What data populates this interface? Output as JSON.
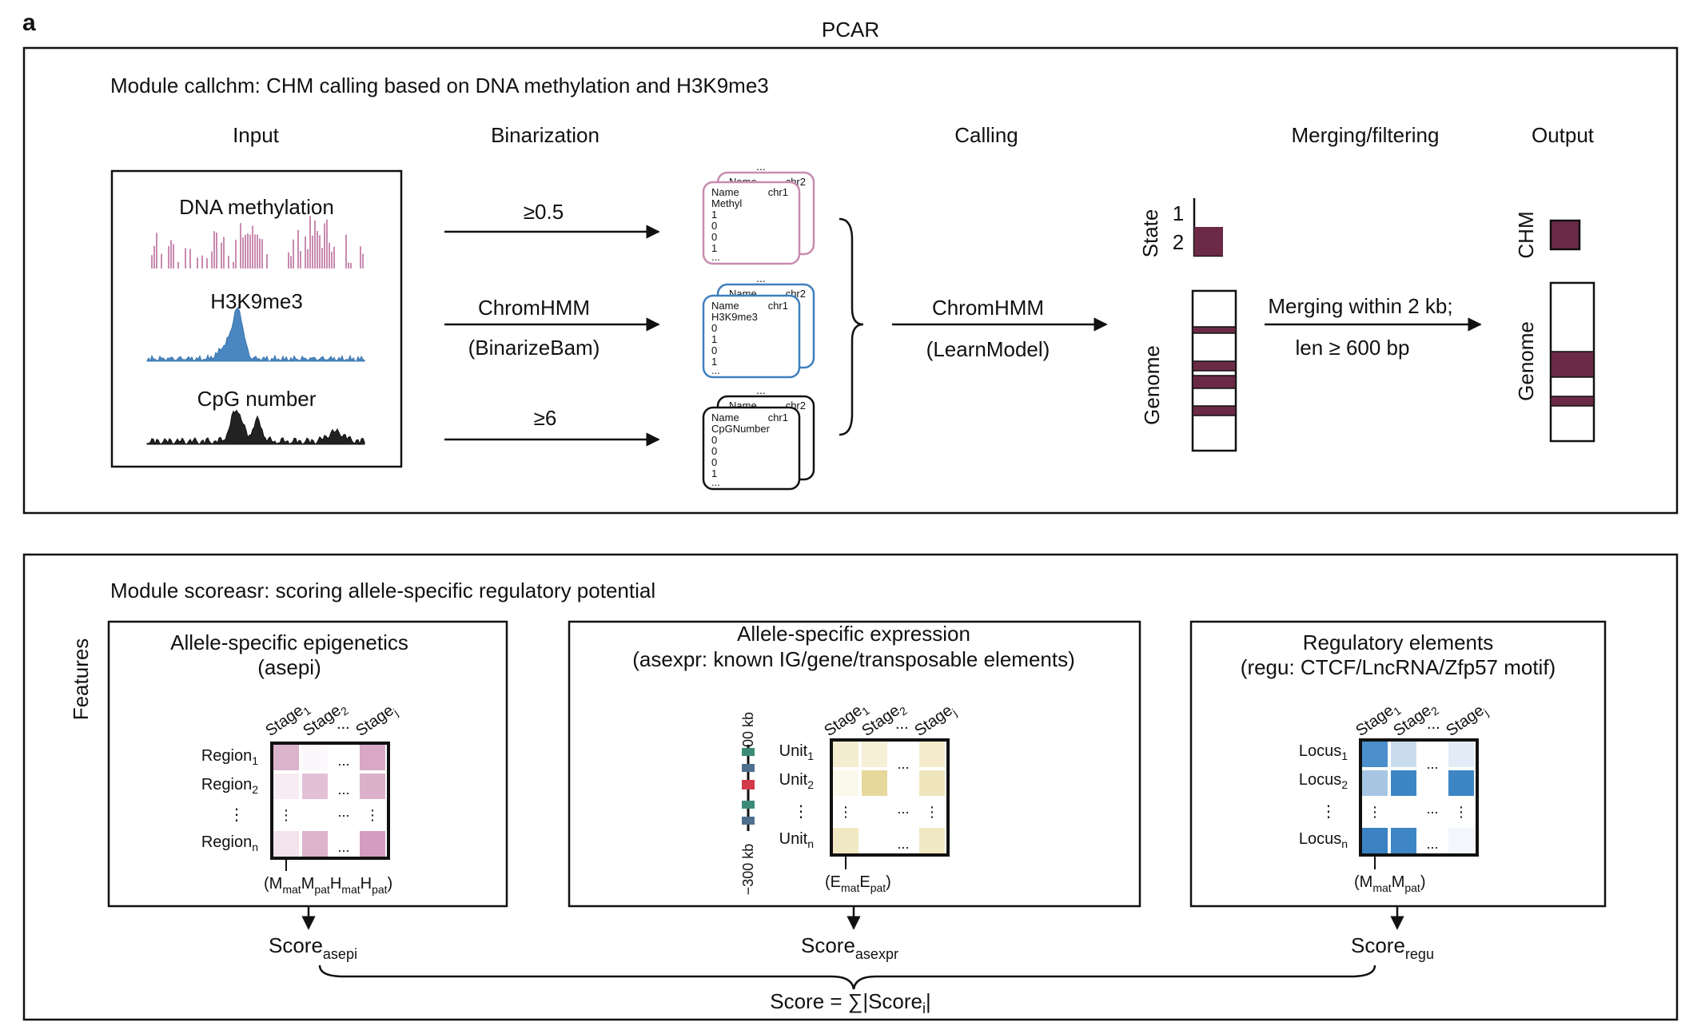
{
  "panel_letter": "a",
  "title": "PCAR",
  "module1": {
    "title": "Module callchm:  CHM calling based on DNA methylation and H3K9me3",
    "col_input": "Input",
    "col_binarization": "Binarization",
    "col_calling": "Calling",
    "col_merging": "Merging/filtering",
    "col_output": "Output",
    "tracks": {
      "methylation": "DNA methylation",
      "h3k9me3": "H3K9me3",
      "cpg": "CpG number"
    },
    "arrows": {
      "meth_threshold": "≥0.5",
      "chrom_tool": "ChromHMM",
      "chrom_cmd": "(BinarizeBam)",
      "cpg_threshold": "≥6",
      "call_tool": "ChromHMM",
      "call_cmd": "(LearnModel)",
      "merge_line1": "Merging within 2 kb;",
      "merge_line2": "len ≥ 600 bp"
    },
    "cards": {
      "back_dots": "...",
      "back_name": "Name",
      "back_chr": "chr2",
      "front_name": "Name",
      "front_chr": "chr1",
      "card1_feature": "Methyl",
      "card2_feature": "H3K9me3",
      "card3_feature": "CpGNumber",
      "card1_values": [
        "1",
        "0",
        "0",
        "1"
      ],
      "card2_values": [
        "0",
        "1",
        "0",
        "1"
      ],
      "card3_values": [
        "0",
        "0",
        "0",
        "1"
      ],
      "end_dots": "..."
    },
    "state_label": "State",
    "state_1": "1",
    "state_2": "2",
    "genome_label": "Genome",
    "chm_label": "CHM",
    "output_genome_label": "Genome",
    "colors": {
      "methyl": "#c98bb0",
      "h3k9me3": "#4a86c0",
      "cpg": "#222222",
      "chm": "#6b2a46"
    }
  },
  "module2": {
    "title": "Module scoreasr:  scoring allele-specific regulatory potential",
    "features_label": "Features",
    "asepi": {
      "title_line1": "Allele-specific epigenetics",
      "title_line2": "(asepi)",
      "stages": [
        "Stage",
        "Stage",
        "Stage"
      ],
      "stage_subs": [
        "1",
        "2",
        "j"
      ],
      "stage_dots": "...",
      "rows": [
        "Region",
        "Region",
        "Region"
      ],
      "row_subs": [
        "1",
        "2",
        "n"
      ],
      "vdots": "⋮",
      "hdots": "...",
      "formula": {
        "open": "(",
        "m1": "M",
        "m1s": "mat",
        "m2": "M",
        "m2s": "pat",
        "h1": "H",
        "h1s": "mat",
        "h2": "H",
        "h2s": "pat",
        "close": ")"
      },
      "score": "Score",
      "score_sub": "asepi"
    },
    "asexpr": {
      "title_line1": "Allele-specific expression",
      "title_line2": "(asexpr: known IG/gene/transposable elements)",
      "top_kb": "300 kb",
      "bottom_kb": "−300 kb",
      "stages": [
        "Stage",
        "Stage",
        "Stage"
      ],
      "stage_subs": [
        "1",
        "2",
        "j"
      ],
      "stage_dots": "...",
      "rows": [
        "Unit",
        "Unit",
        "Unit"
      ],
      "row_subs": [
        "1",
        "2",
        "n"
      ],
      "vdots": "⋮",
      "hdots": "...",
      "formula": {
        "open": "(",
        "e1": "E",
        "e1s": "mat",
        "e2": "E",
        "e2s": "pat",
        "close": ")"
      },
      "score": "Score",
      "score_sub": "asexpr"
    },
    "regu": {
      "title_line1": "Regulatory elements",
      "title_line2": "(regu: CTCF/LncRNA/Zfp57 motif)",
      "stages": [
        "Stage",
        "Stage",
        "Stage"
      ],
      "stage_subs": [
        "1",
        "2",
        "j"
      ],
      "stage_dots": "...",
      "rows": [
        "Locus",
        "Locus",
        "Locus"
      ],
      "row_subs": [
        "1",
        "2",
        "n"
      ],
      "vdots": "⋮",
      "hdots": "...",
      "formula": {
        "open": "(",
        "m1": "M",
        "m1s": "mat",
        "m2": "M",
        "m2s": "pat",
        "close": ")"
      },
      "score": "Score",
      "score_sub": "regu"
    },
    "total_score": {
      "lhs": "Score = ∑|Score",
      "sub": "i",
      "rhs": "|"
    },
    "colors": {
      "asepi": "#c98bb0",
      "asexpr": "#e3d38f",
      "regu": "#3f86c4"
    }
  }
}
